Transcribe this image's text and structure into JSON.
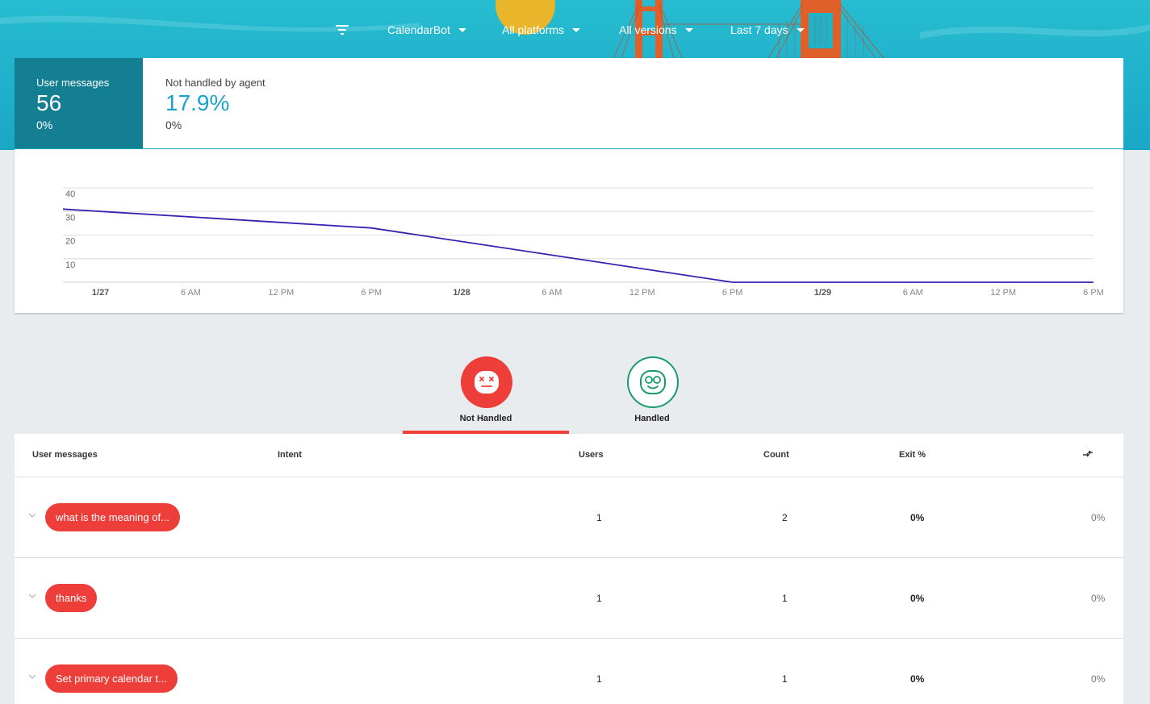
{
  "toolbar": {
    "filter_icon": "filter-icon",
    "agent": "CalendarBot",
    "platform": "All platforms",
    "version": "All versions",
    "range": "Last 7 days"
  },
  "summary": {
    "user_messages": {
      "label": "User messages",
      "value": "56",
      "delta": "0%"
    },
    "not_handled": {
      "label": "Not handled by agent",
      "value": "17.9%",
      "delta": "0%"
    }
  },
  "chart_data": {
    "type": "line",
    "y_ticks": [
      "40",
      "30",
      "20",
      "10"
    ],
    "ylim": [
      0,
      40
    ],
    "x_tick_labels": [
      "1/27",
      "6 AM",
      "12 PM",
      "6 PM",
      "1/28",
      "6 AM",
      "12 PM",
      "6 PM",
      "1/29",
      "6 AM",
      "12 PM",
      "6 PM"
    ],
    "x_tick_bold": [
      true,
      false,
      false,
      false,
      true,
      false,
      false,
      false,
      true,
      false,
      false,
      false
    ],
    "x_hours": [
      0,
      6,
      12,
      18,
      24,
      30,
      36,
      42,
      48,
      54,
      60,
      66
    ],
    "x_range_hours": [
      -2.5,
      66
    ],
    "series": [
      {
        "color": "#3a1fb0",
        "points": [
          [
            -2.5,
            31
          ],
          [
            18,
            23
          ],
          [
            42,
            0
          ],
          [
            66,
            0
          ]
        ]
      }
    ],
    "grid": true
  },
  "tabs": [
    {
      "label": "Not Handled",
      "icon": "dizzy-face-icon",
      "active": true,
      "color": "#ee3e3a"
    },
    {
      "label": "Handled",
      "icon": "happy-glasses-face-icon",
      "active": false,
      "color": "#1a9b6f"
    }
  ],
  "table": {
    "headers": {
      "messages": "User messages",
      "intent": "Intent",
      "users": "Users",
      "count": "Count",
      "exit": "Exit %",
      "compare_icon": "compare-arrows-icon"
    },
    "rows": [
      {
        "message": "what is the meaning of...",
        "intent": "",
        "users": "1",
        "count": "2",
        "exit": "0%",
        "extra": "0%"
      },
      {
        "message": "thanks",
        "intent": "",
        "users": "1",
        "count": "1",
        "exit": "0%",
        "extra": "0%"
      },
      {
        "message": "Set primary calendar t...",
        "intent": "",
        "users": "1",
        "count": "1",
        "exit": "0%",
        "extra": "0%"
      }
    ]
  }
}
